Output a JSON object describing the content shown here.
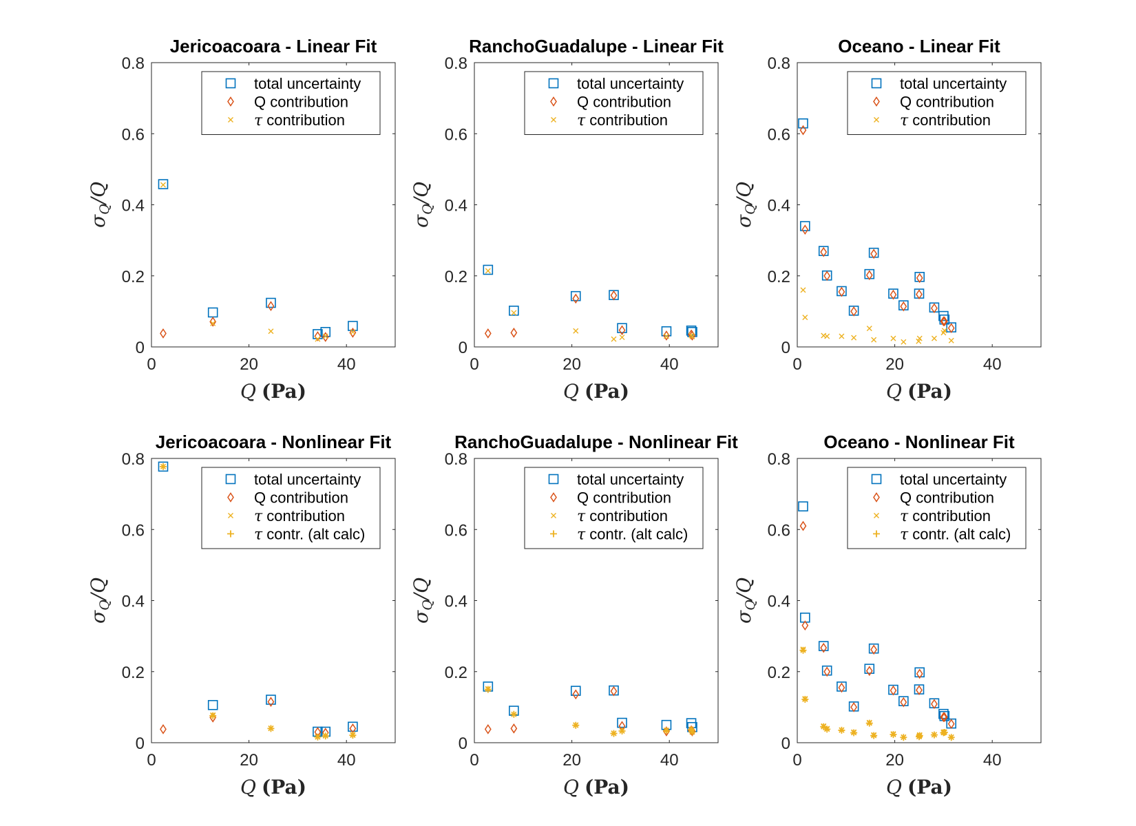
{
  "colors": {
    "total": "#0072BD",
    "q": "#D95319",
    "tau": "#EDB120",
    "tau_alt": "#EDB120"
  },
  "chart_data": [
    {
      "type": "scatter",
      "title": "Jericoacoara - Linear Fit",
      "xlabel": "Q (Pa)",
      "ylabel": "σQ/Q",
      "xlim": [
        0,
        50
      ],
      "ylim": [
        0,
        0.8
      ],
      "xticks": [
        0,
        20,
        40
      ],
      "yticks": [
        0,
        0.2,
        0.4,
        0.6,
        0.8
      ],
      "legend_position": "top-right",
      "series": [
        {
          "name": "total uncertainty",
          "marker": "square",
          "color": "#0072BD",
          "x": [
            2.4,
            12.6,
            24.5,
            34.1,
            35.7,
            41.3
          ],
          "y": [
            0.458,
            0.097,
            0.124,
            0.036,
            0.042,
            0.059
          ]
        },
        {
          "name": "Q contribution",
          "marker": "diamond",
          "color": "#D95319",
          "x": [
            2.4,
            12.6,
            24.5,
            34.1,
            35.7,
            41.3
          ],
          "y": [
            0.038,
            0.071,
            0.115,
            0.03,
            0.028,
            0.04
          ]
        },
        {
          "name": "τ contribution",
          "marker": "x",
          "color": "#EDB120",
          "x": [
            2.4,
            12.6,
            24.5,
            34.1,
            35.7,
            41.3
          ],
          "y": [
            0.456,
            0.066,
            0.044,
            0.022,
            0.03,
            0.042
          ]
        }
      ]
    },
    {
      "type": "scatter",
      "title": "RanchoGuadalupe - Linear Fit",
      "xlabel": "Q (Pa)",
      "ylabel": "σQ/Q",
      "xlim": [
        0,
        50
      ],
      "ylim": [
        0,
        0.8
      ],
      "xticks": [
        0,
        20,
        40
      ],
      "yticks": [
        0,
        0.2,
        0.4,
        0.6,
        0.8
      ],
      "legend_position": "top-right",
      "series": [
        {
          "name": "total uncertainty",
          "marker": "square",
          "color": "#0072BD",
          "x": [
            2.8,
            8.1,
            20.8,
            28.6,
            30.3,
            39.4,
            44.5,
            44.7
          ],
          "y": [
            0.217,
            0.102,
            0.143,
            0.146,
            0.053,
            0.044,
            0.046,
            0.042
          ]
        },
        {
          "name": "Q contribution",
          "marker": "diamond",
          "color": "#D95319",
          "x": [
            2.8,
            8.1,
            20.8,
            28.6,
            30.3,
            39.4,
            44.5,
            44.7
          ],
          "y": [
            0.038,
            0.04,
            0.136,
            0.145,
            0.047,
            0.032,
            0.035,
            0.032
          ]
        },
        {
          "name": "τ contribution",
          "marker": "x",
          "color": "#EDB120",
          "x": [
            2.8,
            8.1,
            20.8,
            28.6,
            30.3,
            39.4,
            44.5,
            44.7
          ],
          "y": [
            0.214,
            0.096,
            0.045,
            0.022,
            0.027,
            0.03,
            0.033,
            0.029
          ]
        }
      ]
    },
    {
      "type": "scatter",
      "title": "Oceano - Linear Fit",
      "xlabel": "Q (Pa)",
      "ylabel": "σQ/Q",
      "xlim": [
        0,
        50
      ],
      "ylim": [
        0,
        0.8
      ],
      "xticks": [
        0,
        20,
        40
      ],
      "yticks": [
        0,
        0.2,
        0.4,
        0.6,
        0.8
      ],
      "legend_position": "top-right",
      "series": [
        {
          "name": "total uncertainty",
          "marker": "square",
          "color": "#0072BD",
          "x": [
            1.2,
            1.6,
            5.4,
            6.1,
            9.1,
            11.6,
            14.8,
            15.7,
            19.7,
            21.8,
            25.0,
            25.1,
            28.1,
            30.0,
            30.2,
            31.6
          ],
          "y": [
            0.629,
            0.34,
            0.27,
            0.201,
            0.157,
            0.102,
            0.205,
            0.265,
            0.15,
            0.117,
            0.15,
            0.197,
            0.111,
            0.087,
            0.077,
            0.055
          ]
        },
        {
          "name": "Q contribution",
          "marker": "diamond",
          "color": "#D95319",
          "x": [
            1.2,
            1.6,
            5.4,
            6.1,
            9.1,
            11.6,
            14.8,
            15.7,
            19.7,
            21.8,
            25.0,
            25.1,
            28.1,
            30.0,
            30.2,
            31.6
          ],
          "y": [
            0.61,
            0.33,
            0.267,
            0.2,
            0.155,
            0.1,
            0.202,
            0.262,
            0.147,
            0.114,
            0.148,
            0.194,
            0.109,
            0.072,
            0.072,
            0.053
          ]
        },
        {
          "name": "τ contribution",
          "marker": "x",
          "color": "#EDB120",
          "x": [
            1.2,
            1.6,
            5.4,
            6.1,
            9.1,
            11.6,
            14.8,
            15.7,
            19.7,
            21.8,
            24.9,
            25.1,
            28.1,
            30.0,
            30.2,
            31.6
          ],
          "y": [
            0.16,
            0.083,
            0.032,
            0.03,
            0.03,
            0.026,
            0.052,
            0.02,
            0.024,
            0.014,
            0.016,
            0.024,
            0.024,
            0.04,
            0.046,
            0.018
          ]
        }
      ]
    },
    {
      "type": "scatter",
      "title": "Jericoacoara - Nonlinear Fit",
      "xlabel": "Q (Pa)",
      "ylabel": "σQ/Q",
      "xlim": [
        0,
        50
      ],
      "ylim": [
        0,
        0.8
      ],
      "xticks": [
        0,
        20,
        40
      ],
      "yticks": [
        0,
        0.2,
        0.4,
        0.6,
        0.8
      ],
      "legend_position": "top-right",
      "series": [
        {
          "name": "total uncertainty",
          "marker": "square",
          "color": "#0072BD",
          "x": [
            2.4,
            12.6,
            24.5,
            34.1,
            35.7,
            41.3
          ],
          "y": [
            0.777,
            0.106,
            0.121,
            0.031,
            0.031,
            0.045
          ]
        },
        {
          "name": "Q contribution",
          "marker": "diamond",
          "color": "#D95319",
          "x": [
            2.4,
            12.6,
            24.5,
            34.1,
            35.7,
            41.3
          ],
          "y": [
            0.038,
            0.071,
            0.115,
            0.03,
            0.028,
            0.04
          ]
        },
        {
          "name": "τ contribution",
          "marker": "x",
          "color": "#EDB120",
          "x": [
            2.4,
            12.6,
            24.5,
            34.1,
            35.7,
            41.3
          ],
          "y": [
            0.777,
            0.078,
            0.041,
            0.017,
            0.02,
            0.023
          ]
        },
        {
          "name": "τ contr. (alt calc)",
          "marker": "plus",
          "color": "#EDB120",
          "x": [
            2.4,
            12.6,
            24.5,
            34.1,
            35.7,
            41.3
          ],
          "y": [
            0.777,
            0.076,
            0.04,
            0.016,
            0.019,
            0.021
          ]
        }
      ]
    },
    {
      "type": "scatter",
      "title": "RanchoGuadalupe - Nonlinear Fit",
      "xlabel": "Q (Pa)",
      "ylabel": "σQ/Q",
      "xlim": [
        0,
        50
      ],
      "ylim": [
        0,
        0.8
      ],
      "xticks": [
        0,
        20,
        40
      ],
      "yticks": [
        0,
        0.2,
        0.4,
        0.6,
        0.8
      ],
      "legend_position": "top-right",
      "series": [
        {
          "name": "total uncertainty",
          "marker": "square",
          "color": "#0072BD",
          "x": [
            2.8,
            8.1,
            20.8,
            28.6,
            30.3,
            39.4,
            44.5,
            44.7
          ],
          "y": [
            0.158,
            0.09,
            0.146,
            0.147,
            0.056,
            0.05,
            0.055,
            0.044
          ]
        },
        {
          "name": "Q contribution",
          "marker": "diamond",
          "color": "#D95319",
          "x": [
            2.8,
            8.1,
            20.8,
            28.6,
            30.3,
            39.4,
            44.5,
            44.7
          ],
          "y": [
            0.038,
            0.04,
            0.136,
            0.145,
            0.047,
            0.032,
            0.035,
            0.032
          ]
        },
        {
          "name": "τ contribution",
          "marker": "x",
          "color": "#EDB120",
          "x": [
            2.8,
            8.1,
            20.8,
            28.6,
            30.3,
            39.4,
            44.5,
            44.7
          ],
          "y": [
            0.152,
            0.08,
            0.05,
            0.027,
            0.034,
            0.035,
            0.038,
            0.031
          ]
        },
        {
          "name": "τ contr. (alt calc)",
          "marker": "plus",
          "color": "#EDB120",
          "x": [
            2.8,
            8.1,
            20.8,
            28.6,
            30.3,
            39.4,
            44.5,
            44.7
          ],
          "y": [
            0.15,
            0.08,
            0.049,
            0.026,
            0.033,
            0.034,
            0.037,
            0.03
          ]
        }
      ]
    },
    {
      "type": "scatter",
      "title": "Oceano - Nonlinear Fit",
      "xlabel": "Q (Pa)",
      "ylabel": "σQ/Q",
      "xlim": [
        0,
        50
      ],
      "ylim": [
        0,
        0.8
      ],
      "xticks": [
        0,
        20,
        40
      ],
      "yticks": [
        0,
        0.2,
        0.4,
        0.6,
        0.8
      ],
      "legend_position": "top-right",
      "series": [
        {
          "name": "total uncertainty",
          "marker": "square",
          "color": "#0072BD",
          "x": [
            1.2,
            1.6,
            5.4,
            6.1,
            9.1,
            11.6,
            14.8,
            15.7,
            19.7,
            21.8,
            25.0,
            25.1,
            28.1,
            30.0,
            30.2,
            31.6
          ],
          "y": [
            0.665,
            0.352,
            0.272,
            0.203,
            0.158,
            0.102,
            0.208,
            0.265,
            0.149,
            0.117,
            0.15,
            0.198,
            0.111,
            0.081,
            0.075,
            0.054
          ]
        },
        {
          "name": "Q contribution",
          "marker": "diamond",
          "color": "#D95319",
          "x": [
            1.2,
            1.6,
            5.4,
            6.1,
            9.1,
            11.6,
            14.8,
            15.7,
            19.7,
            21.8,
            25.0,
            25.1,
            28.1,
            30.0,
            30.2,
            31.6
          ],
          "y": [
            0.61,
            0.33,
            0.267,
            0.2,
            0.155,
            0.1,
            0.202,
            0.262,
            0.147,
            0.114,
            0.148,
            0.194,
            0.109,
            0.072,
            0.072,
            0.053
          ]
        },
        {
          "name": "τ contribution",
          "marker": "x",
          "color": "#EDB120",
          "x": [
            1.2,
            1.6,
            5.4,
            6.1,
            9.1,
            11.6,
            14.8,
            15.7,
            19.7,
            21.8,
            25.0,
            25.1,
            28.1,
            30.0,
            30.2,
            31.6
          ],
          "y": [
            0.263,
            0.124,
            0.047,
            0.04,
            0.036,
            0.03,
            0.057,
            0.022,
            0.025,
            0.016,
            0.018,
            0.022,
            0.023,
            0.03,
            0.03,
            0.016
          ]
        },
        {
          "name": "τ contr. (alt calc)",
          "marker": "plus",
          "color": "#EDB120",
          "x": [
            1.2,
            1.6,
            5.4,
            6.1,
            9.1,
            11.6,
            14.8,
            15.7,
            19.7,
            21.8,
            25.0,
            25.1,
            28.1,
            30.0,
            30.2,
            31.6
          ],
          "y": [
            0.26,
            0.122,
            0.045,
            0.038,
            0.035,
            0.028,
            0.055,
            0.02,
            0.023,
            0.015,
            0.017,
            0.02,
            0.022,
            0.028,
            0.029,
            0.015
          ]
        }
      ]
    }
  ]
}
